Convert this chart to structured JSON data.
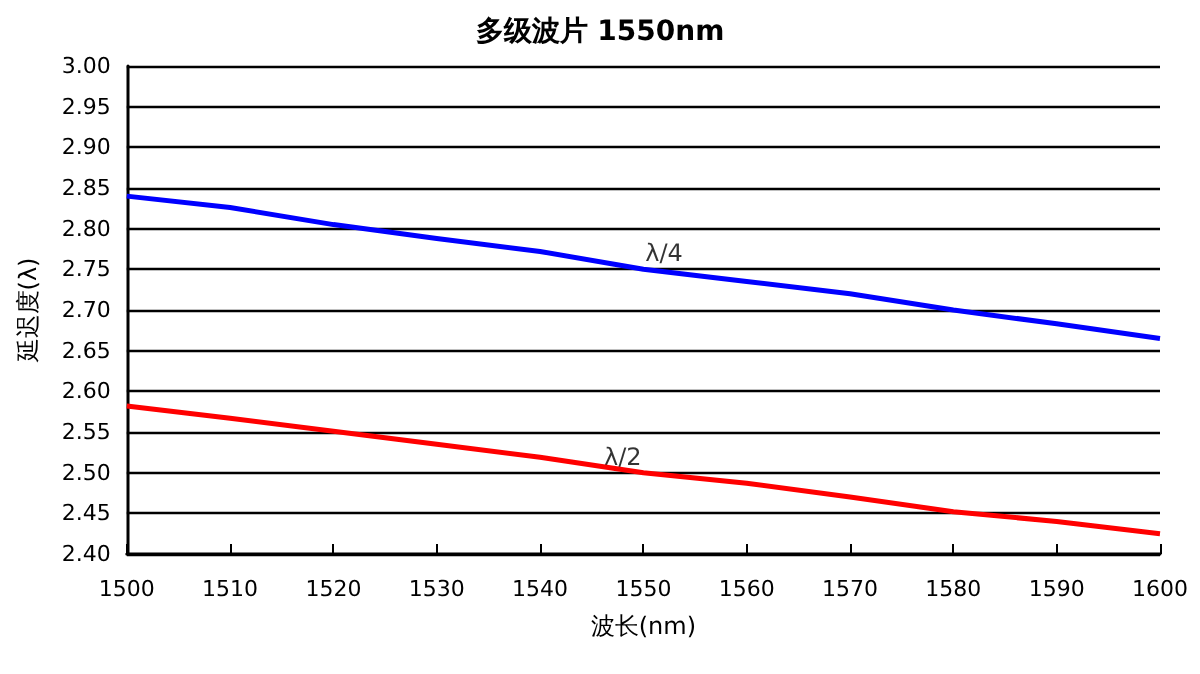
{
  "chart_data": {
    "type": "line",
    "title": "多级波片 1550nm",
    "xlabel": "波长(nm)",
    "ylabel": "延迟度(λ)",
    "x": [
      1500,
      1510,
      1520,
      1530,
      1540,
      1550,
      1560,
      1570,
      1580,
      1590,
      1600
    ],
    "series": [
      {
        "color": "#0000ff",
        "values": [
          2.84,
          2.826,
          2.805,
          2.788,
          2.772,
          2.75,
          2.735,
          2.72,
          2.7,
          2.683,
          2.665
        ]
      },
      {
        "color": "#ff0000",
        "values": [
          2.582,
          2.567,
          2.551,
          2.535,
          2.519,
          2.5,
          2.487,
          2.47,
          2.452,
          2.44,
          2.425
        ]
      }
    ],
    "annotations": [
      {
        "text": "λ/4",
        "x": 1552,
        "y": 2.75
      },
      {
        "text": "λ/2",
        "x": 1548,
        "y": 2.5
      }
    ],
    "xlim": [
      1500,
      1600
    ],
    "xticks": [
      1500,
      1510,
      1520,
      1530,
      1540,
      1550,
      1560,
      1570,
      1580,
      1590,
      1600
    ],
    "ylim": [
      2.4,
      3.0
    ],
    "yticks": [
      {
        "value": 2.4,
        "label": "2.40"
      },
      2.45,
      {
        "value": 2.5,
        "label": "2.50"
      },
      2.55,
      {
        "value": 2.6,
        "label": "2.60"
      },
      2.65,
      {
        "value": 2.7,
        "label": "2.70"
      },
      2.75,
      {
        "value": 2.8,
        "label": "2.80"
      },
      2.85,
      {
        "value": 2.9,
        "label": "2.90"
      },
      2.95,
      {
        "value": 3.0,
        "label": "3.00"
      }
    ],
    "grid": "y",
    "marker": "none",
    "line_style": "solid"
  }
}
